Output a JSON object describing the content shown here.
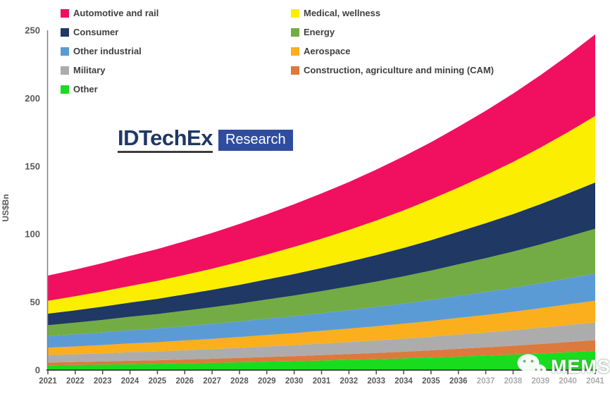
{
  "chart_data": {
    "type": "area",
    "stacked": true,
    "title": "",
    "xlabel": "",
    "ylabel": "US$Bn",
    "ylim": [
      0,
      250
    ],
    "ytick_step": 50,
    "grid": false,
    "legend_position": "top",
    "years": [
      2021,
      2022,
      2023,
      2024,
      2025,
      2026,
      2027,
      2028,
      2029,
      2030,
      2031,
      2032,
      2033,
      2034,
      2035,
      2036,
      2037,
      2038,
      2039,
      2040,
      2041
    ],
    "series": [
      {
        "name": "Other",
        "color": "#19DC1F",
        "values": [
          3.5,
          3.8,
          4.0,
          4.3,
          4.6,
          5.0,
          5.3,
          5.7,
          6.1,
          6.5,
          7.0,
          7.5,
          8.0,
          8.6,
          9.2,
          9.9,
          10.6,
          11.4,
          12.2,
          13.1,
          14.0
        ]
      },
      {
        "name": "Construction, agriculture and mining (CAM)",
        "color": "#DD793C",
        "values": [
          2.0,
          2.1,
          2.3,
          2.5,
          2.6,
          2.8,
          3.0,
          3.2,
          3.5,
          3.7,
          4.0,
          4.3,
          4.6,
          4.9,
          5.3,
          5.7,
          6.1,
          6.5,
          7.0,
          7.5,
          8.0
        ]
      },
      {
        "name": "Military",
        "color": "#ACACAC",
        "values": [
          5.5,
          5.7,
          6.0,
          6.3,
          6.5,
          6.8,
          7.1,
          7.4,
          7.8,
          8.1,
          8.5,
          8.8,
          9.2,
          9.6,
          10.0,
          10.5,
          10.9,
          11.4,
          11.9,
          12.5,
          13.0
        ]
      },
      {
        "name": "Aerospace",
        "color": "#FBAF1C",
        "values": [
          5.5,
          5.8,
          6.1,
          6.5,
          6.8,
          7.2,
          7.6,
          8.0,
          8.4,
          8.9,
          9.4,
          9.9,
          10.4,
          11.0,
          11.6,
          12.3,
          12.9,
          13.6,
          14.4,
          15.2,
          16.0
        ]
      },
      {
        "name": "Other industrial",
        "color": "#5B9BD5",
        "values": [
          8.5,
          8.9,
          9.3,
          9.7,
          10.1,
          10.5,
          11.0,
          11.5,
          12.0,
          12.5,
          13.0,
          13.6,
          14.2,
          14.8,
          15.5,
          16.2,
          16.9,
          17.6,
          18.4,
          19.2,
          20.0
        ]
      },
      {
        "name": "Energy",
        "color": "#73AC44",
        "values": [
          8.0,
          8.6,
          9.2,
          9.9,
          10.6,
          11.4,
          12.2,
          13.1,
          14.1,
          15.1,
          16.2,
          17.4,
          18.7,
          20.1,
          21.6,
          23.2,
          24.9,
          26.7,
          28.6,
          30.7,
          33.0
        ]
      },
      {
        "name": "Consumer",
        "color": "#1F3864",
        "values": [
          8.5,
          9.1,
          9.8,
          10.5,
          11.2,
          12.0,
          12.9,
          13.8,
          14.8,
          15.9,
          17.0,
          18.2,
          19.5,
          20.9,
          22.4,
          24.0,
          25.8,
          27.6,
          29.6,
          31.7,
          34.0
        ]
      },
      {
        "name": "Medical, wellness",
        "color": "#FCEE00",
        "values": [
          9.5,
          10.3,
          11.2,
          12.2,
          13.2,
          14.3,
          15.5,
          16.9,
          18.3,
          19.9,
          21.6,
          23.4,
          25.4,
          27.6,
          30.0,
          32.5,
          35.3,
          38.3,
          41.6,
          45.1,
          49.0
        ]
      },
      {
        "name": "Automotive and rail",
        "color": "#F0105F",
        "values": [
          18.5,
          19.6,
          20.8,
          22.1,
          23.4,
          24.8,
          26.3,
          27.9,
          29.6,
          31.4,
          33.3,
          35.3,
          37.5,
          39.7,
          42.1,
          44.7,
          47.4,
          50.3,
          53.3,
          56.5,
          60.0
        ]
      }
    ],
    "legend": {
      "column1": [
        "Automotive and rail",
        "Consumer",
        "Other industrial",
        "Military",
        "Other"
      ],
      "column2": [
        "Medical, wellness",
        "Energy",
        "Aerospace",
        "Construction, agriculture and mining (CAM)"
      ]
    }
  },
  "axis_style": {
    "text_color": "#595959",
    "axis_line_color": "#4a4a4a",
    "y_axis_line_color": "#808080"
  },
  "logo": {
    "brand": "IDTechEx",
    "suffix": "Research",
    "brand_color": "#1f3864",
    "box_color": "#2f4c9e"
  },
  "watermark": {
    "icon": "wechat-icon",
    "text": "MEMS"
  }
}
